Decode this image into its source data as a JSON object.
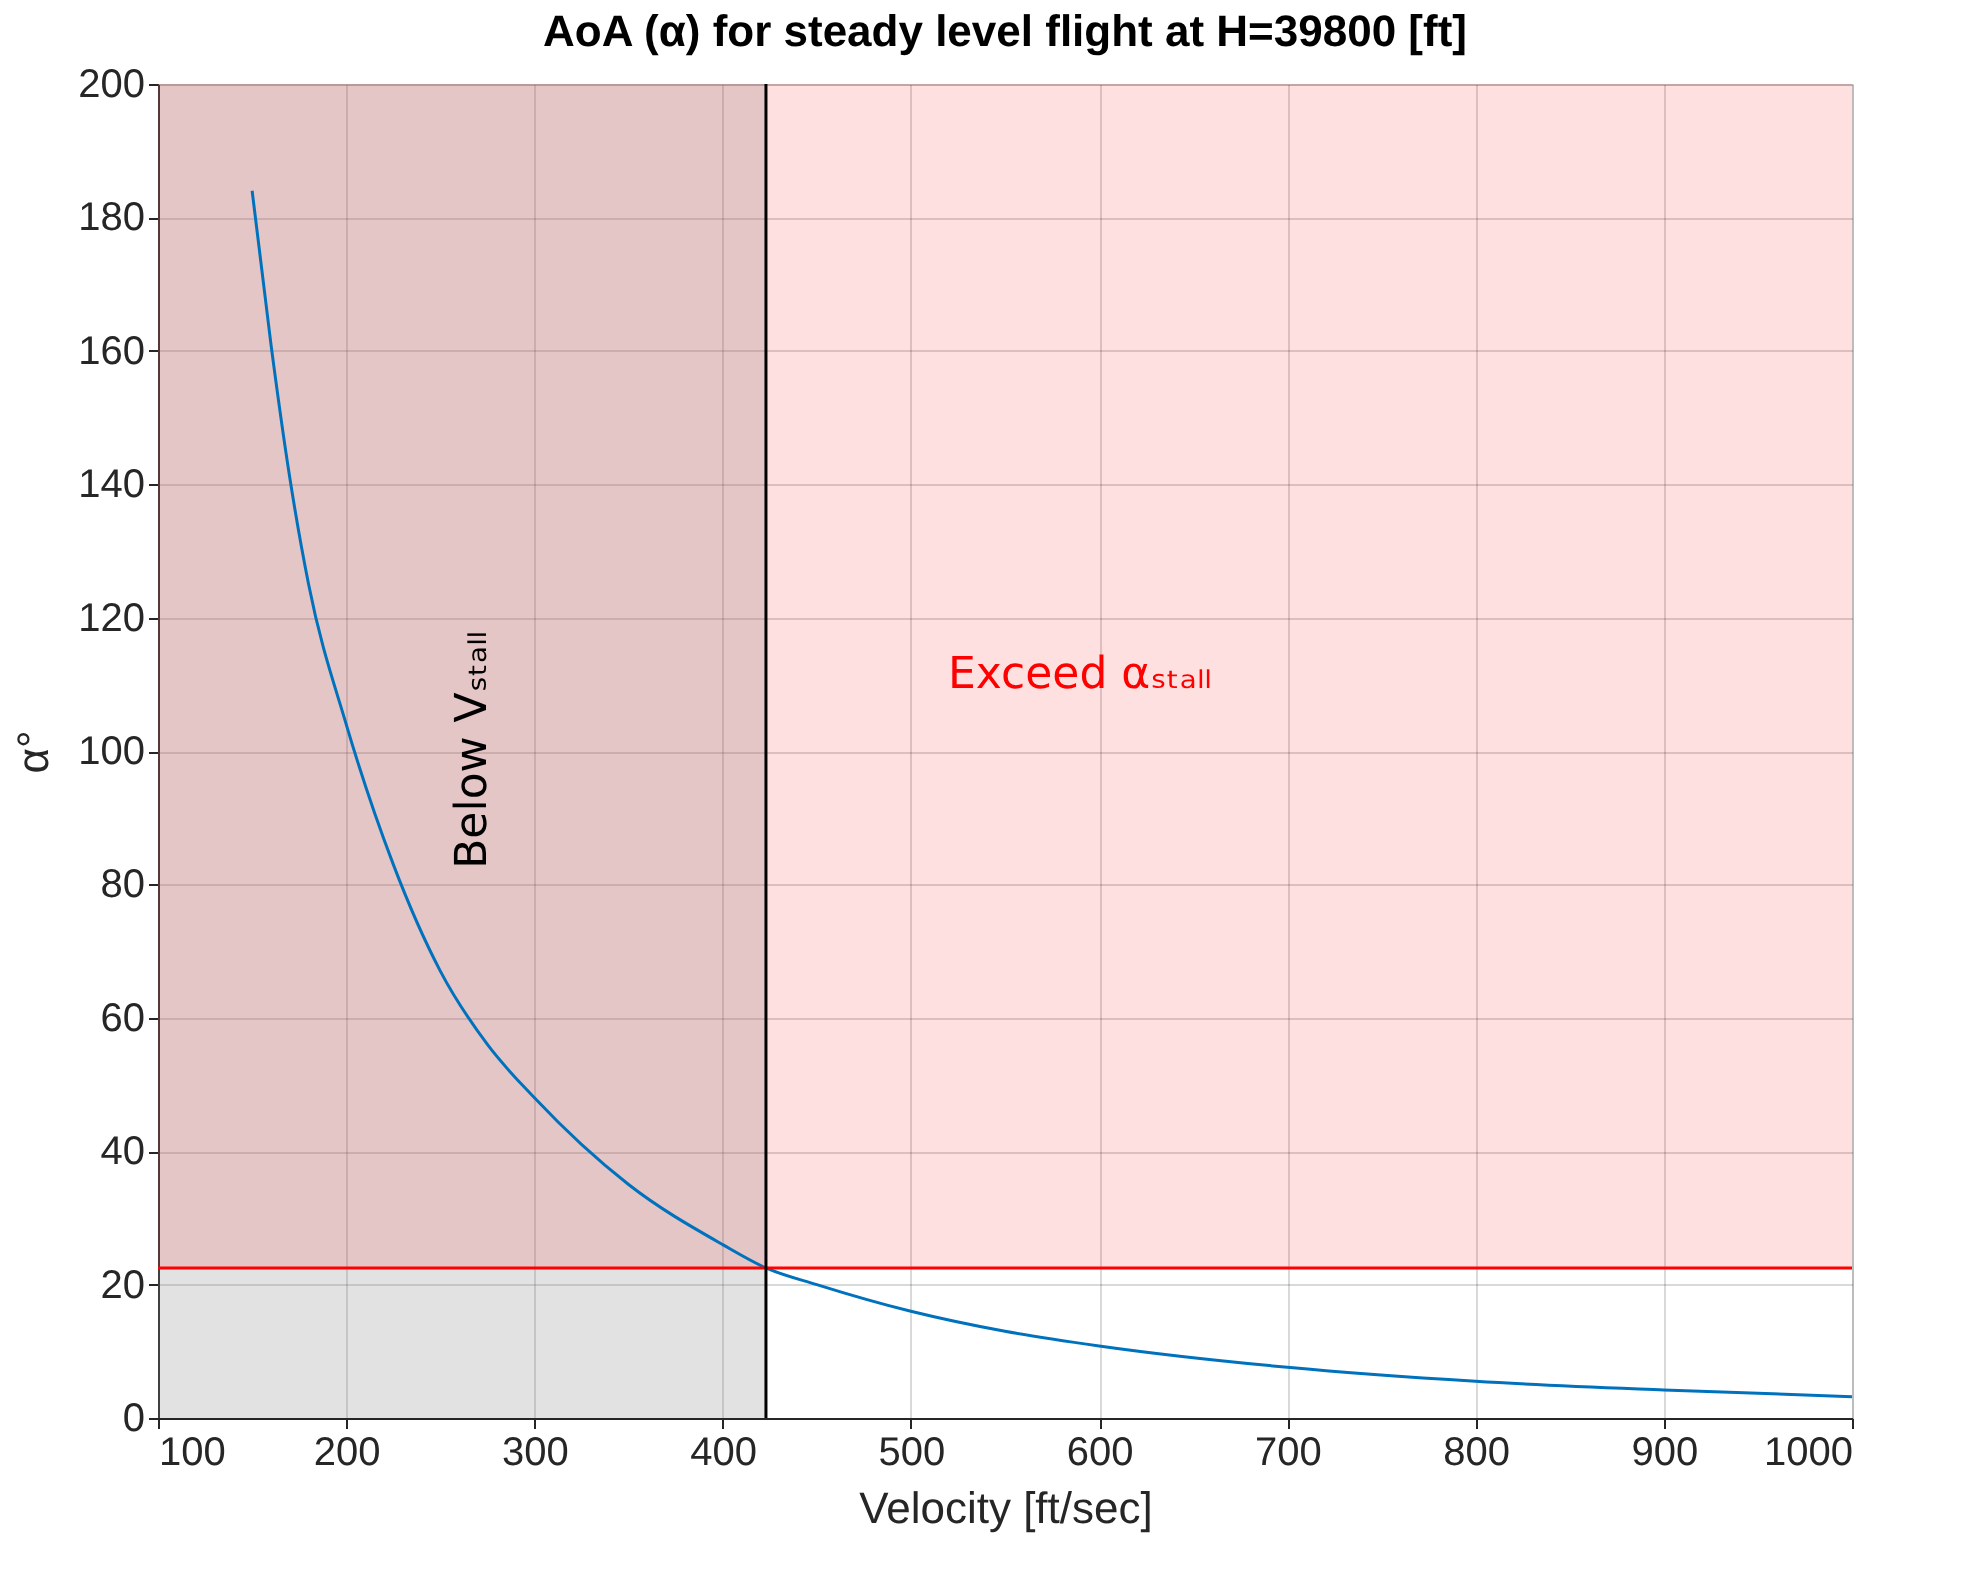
{
  "chart_data": {
    "type": "line",
    "title": "AoA (α) for steady level flight at H=39800 [ft]",
    "xlabel": "Velocity [ft/sec]",
    "ylabel": "α°",
    "series": [
      {
        "color": "#0072bd",
        "x": [
          150,
          160,
          170,
          180,
          200,
          225,
          250,
          275,
          300,
          350,
          400,
          423,
          450,
          500,
          550,
          600,
          700,
          800,
          900,
          1000
        ],
        "values": [
          184,
          161,
          141,
          125,
          104,
          83,
          67,
          56,
          48,
          35,
          26,
          22.5,
          20,
          16,
          13,
          10.8,
          7.6,
          5.5,
          4.2,
          3.2
        ]
      }
    ],
    "xlim": [
      100,
      1000
    ],
    "xticks": [
      100,
      200,
      300,
      400,
      500,
      600,
      700,
      800,
      900,
      1000
    ],
    "ylim": [
      0,
      200
    ],
    "yticks": [
      0,
      20,
      40,
      60,
      80,
      100,
      120,
      140,
      160,
      180,
      200
    ],
    "bands": [
      {
        "axis": "x",
        "from": 100,
        "to": 423,
        "color": "#8c8c8c"
      },
      {
        "axis": "y",
        "from": 22.5,
        "to": 200,
        "color": "#ff0000"
      }
    ],
    "ref_lines": [
      {
        "axis": "y",
        "value": 22.5,
        "color": "#ff0000"
      },
      {
        "axis": "x",
        "value": 423,
        "color": "#000000"
      }
    ],
    "annotations": [
      "Below Vₛₜₐₗₗ",
      "Exceed αₛₜₐₗₗ"
    ],
    "grid": true,
    "marker": "none",
    "line_style": "solid"
  }
}
